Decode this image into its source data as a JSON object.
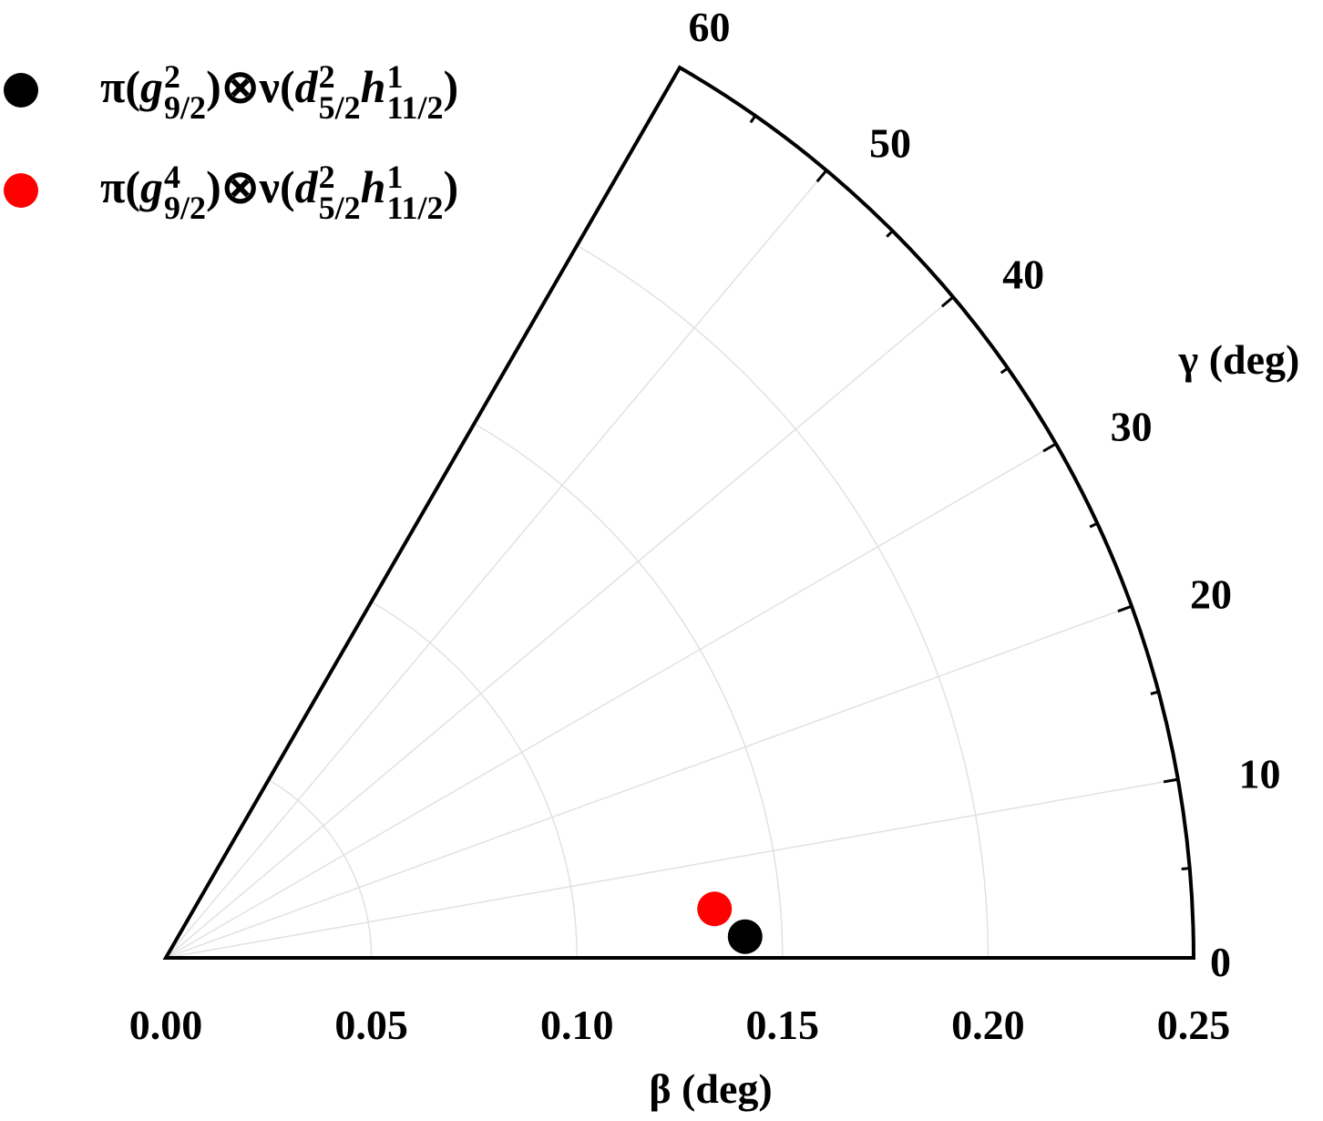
{
  "chart_data": {
    "type": "scatter",
    "coordinate_system": "polar (beta-gamma sector)",
    "xlabel": "β (deg)",
    "ylabel": "γ (deg)",
    "beta_range": [
      0,
      0.25
    ],
    "gamma_range": [
      0,
      60
    ],
    "beta_ticks": [
      "0.00",
      "0.05",
      "0.10",
      "0.15",
      "0.20",
      "0.25"
    ],
    "gamma_ticks": [
      "0",
      "10",
      "20",
      "30",
      "40",
      "50",
      "60"
    ],
    "grid": true,
    "legend_position": "top-left",
    "series": [
      {
        "name_segments": [
          {
            "t": "π("
          },
          {
            "t": "g",
            "sup": "2",
            "sub": "9/2"
          },
          {
            "t": ")⊗ν("
          },
          {
            "t": "d",
            "sup": "2",
            "sub": "5/2"
          },
          {
            "t": "h",
            "sup": "1",
            "sub": "11/2"
          },
          {
            "t": ")"
          }
        ],
        "color": "#000000",
        "points": [
          {
            "beta": 0.141,
            "gamma": 2.1
          }
        ]
      },
      {
        "name_segments": [
          {
            "t": "π("
          },
          {
            "t": "g",
            "sup": "4",
            "sub": "9/2"
          },
          {
            "t": ")⊗ν("
          },
          {
            "t": "d",
            "sup": "2",
            "sub": "5/2"
          },
          {
            "t": "h",
            "sup": "1",
            "sub": "11/2"
          },
          {
            "t": ")"
          }
        ],
        "color": "#ff0000",
        "points": [
          {
            "beta": 0.134,
            "gamma": 5.1
          }
        ]
      }
    ]
  }
}
